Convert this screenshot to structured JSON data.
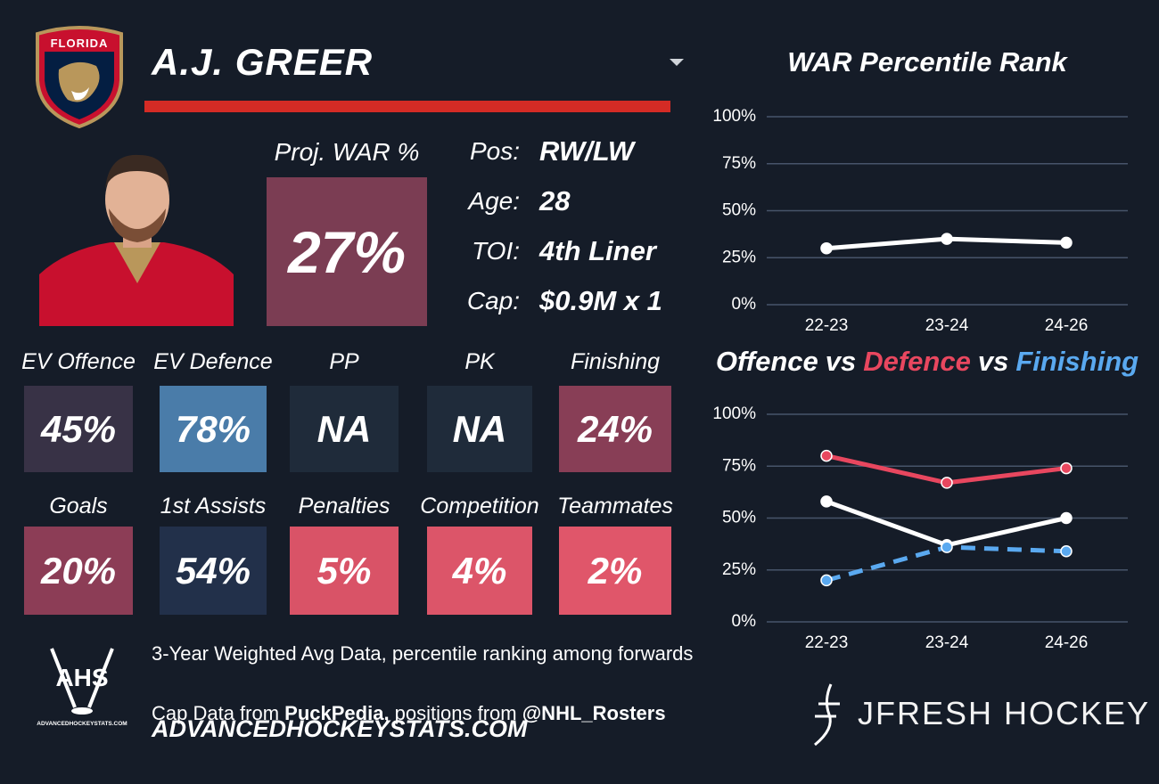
{
  "header": {
    "team": "FLORIDA",
    "player": "A.J. GREER"
  },
  "proj_war": {
    "label": "Proj. WAR %",
    "value": "27%",
    "color": "#7b3d53"
  },
  "info": [
    {
      "label": "Pos:",
      "value": "RW/LW"
    },
    {
      "label": "Age:",
      "value": "28"
    },
    {
      "label": "TOI:",
      "value": "4th Liner"
    },
    {
      "label": "Cap:",
      "value": "$0.9M x 1"
    }
  ],
  "tiles": [
    {
      "label": "EV Offence",
      "value": "45%",
      "color": "#383246"
    },
    {
      "label": "EV Defence",
      "value": "78%",
      "color": "#4a7ca9"
    },
    {
      "label": "PP",
      "value": "NA",
      "color": "#1f2b3a"
    },
    {
      "label": "PK",
      "value": "NA",
      "color": "#1f2b3a"
    },
    {
      "label": "Finishing",
      "value": "24%",
      "color": "#883e56"
    },
    {
      "label": "Goals",
      "value": "20%",
      "color": "#8c3d56"
    },
    {
      "label": "1st Assists",
      "value": "54%",
      "color": "#22304a"
    },
    {
      "label": "Penalties",
      "value": "5%",
      "color": "#d95367"
    },
    {
      "label": "Competition",
      "value": "4%",
      "color": "#dc5569"
    },
    {
      "label": "Teammates",
      "value": "2%",
      "color": "#e0566a"
    }
  ],
  "footer": {
    "note": "3-Year Weighted Avg Data, percentile ranking among forwards",
    "credits": [
      "Cap Data from ",
      "PuckPedia,",
      " positions from ",
      "@NHL_Rosters"
    ],
    "site": "ADVANCEDHOCKEYSTATS.COM"
  },
  "logos": {
    "ahs": "AHS",
    "ahs_site": "ADVANCEDHOCKEYSTATS.COM",
    "brand": "JFRESH HOCKEY"
  },
  "chart_data": [
    {
      "type": "line",
      "title": "WAR Percentile Rank",
      "categories": [
        "22-23",
        "23-24",
        "24-26"
      ],
      "series": [
        {
          "color": "#ffffff",
          "values": [
            30,
            35,
            33
          ]
        }
      ],
      "ylim": [
        0,
        100
      ],
      "yticks": [
        {
          "value": 0,
          "label": "0%"
        },
        {
          "value": 25,
          "label": "25%"
        },
        {
          "value": 50,
          "label": "50%"
        },
        {
          "value": 75,
          "label": "75%"
        },
        {
          "value": 100,
          "label": "100%"
        }
      ],
      "grid": true
    },
    {
      "type": "line",
      "title_joiner": "vs",
      "categories": [
        "22-23",
        "23-24",
        "24-26"
      ],
      "series": [
        {
          "name": "Offence",
          "color": "#ffffff",
          "values": [
            58,
            37,
            50
          ]
        },
        {
          "name": "Defence",
          "color": "#e8475f",
          "values": [
            80,
            67,
            74
          ]
        },
        {
          "name": "Finishing",
          "color": "#5aa9f0",
          "values": [
            20,
            36,
            34
          ],
          "dashed": true
        }
      ],
      "ylim": [
        0,
        100
      ],
      "yticks": [
        {
          "value": 0,
          "label": "0%"
        },
        {
          "value": 25,
          "label": "25%"
        },
        {
          "value": 50,
          "label": "50%"
        },
        {
          "value": 75,
          "label": "75%"
        },
        {
          "value": 100,
          "label": "100%"
        }
      ],
      "grid": true
    }
  ]
}
